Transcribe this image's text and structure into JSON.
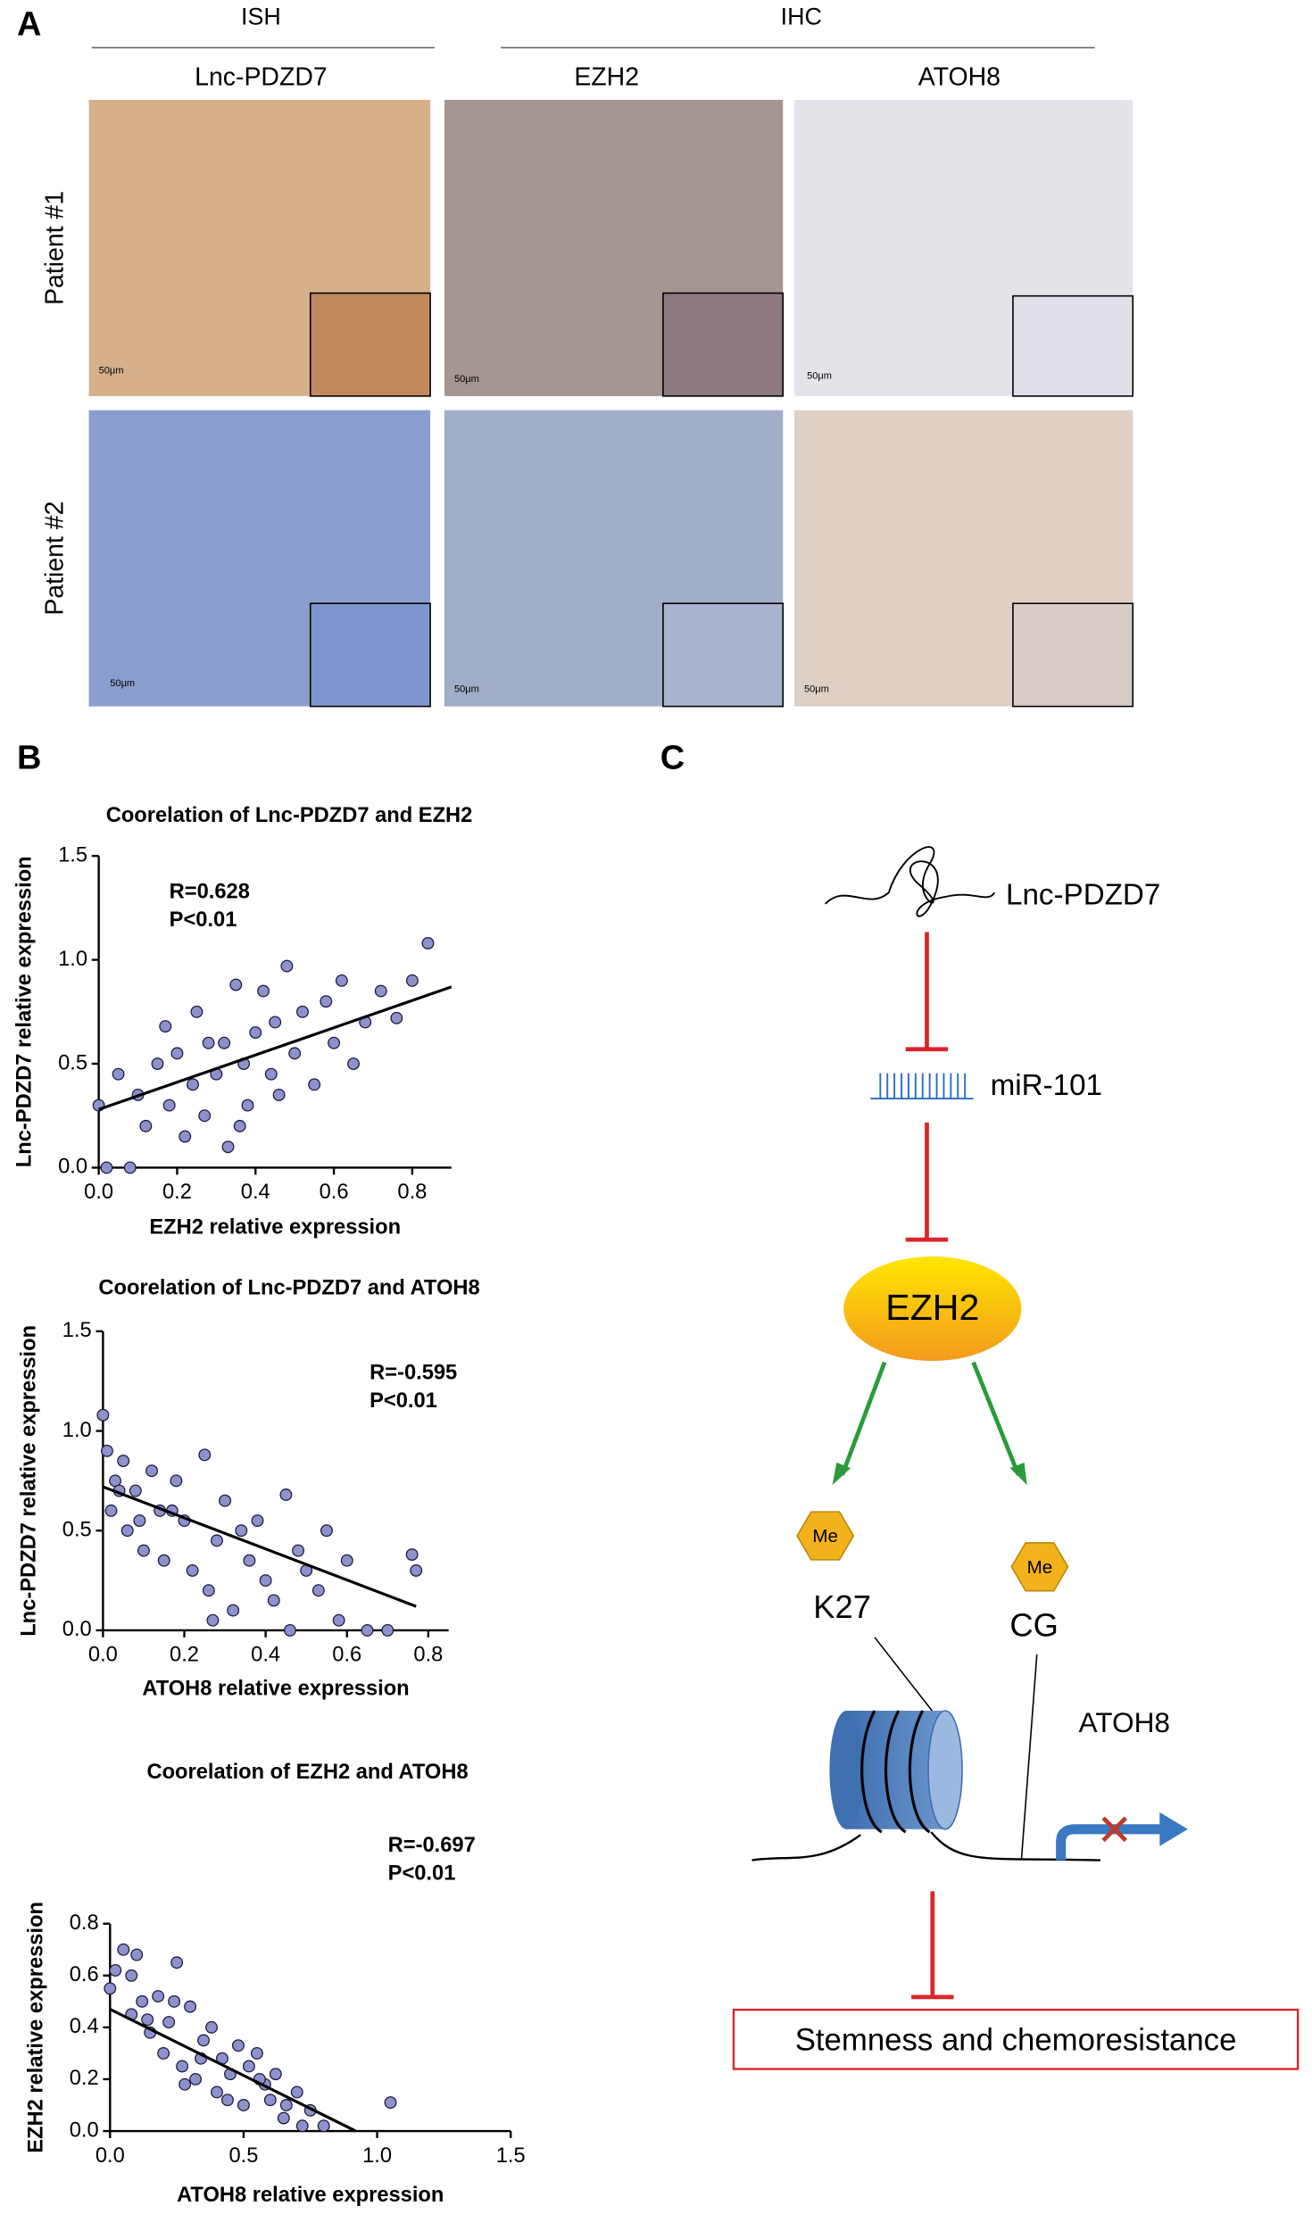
{
  "panel_labels": [
    "A",
    "B",
    "C"
  ],
  "panel_a": {
    "groups": [
      "ISH",
      "IHC"
    ],
    "columns": [
      "Lnc-PDZD7",
      "EZH2",
      "ATOH8"
    ],
    "rows": [
      "Patient #1",
      "Patient #2"
    ],
    "scale_bar": "50μm"
  },
  "chart_data": [
    {
      "type": "scatter",
      "title": "Coorelation of Lnc-PDZD7 and EZH2",
      "xlabel": "EZH2 relative expression",
      "ylabel": "Lnc-PDZD7 relative expression",
      "annotations": [
        "R=0.628",
        "P<0.01"
      ],
      "color": "#8e91cc",
      "x": [
        0.0,
        0.02,
        0.05,
        0.08,
        0.1,
        0.12,
        0.15,
        0.17,
        0.18,
        0.2,
        0.22,
        0.24,
        0.25,
        0.27,
        0.3,
        0.32,
        0.33,
        0.35,
        0.37,
        0.38,
        0.4,
        0.42,
        0.44,
        0.45,
        0.48,
        0.5,
        0.52,
        0.55,
        0.58,
        0.6,
        0.62,
        0.65,
        0.68,
        0.72,
        0.76,
        0.8,
        0.84,
        0.36,
        0.28,
        0.46
      ],
      "y": [
        0.3,
        0.0,
        0.45,
        0.0,
        0.35,
        0.2,
        0.5,
        0.68,
        0.3,
        0.55,
        0.15,
        0.4,
        0.75,
        0.25,
        0.45,
        0.6,
        0.1,
        0.88,
        0.5,
        0.3,
        0.65,
        0.85,
        0.45,
        0.7,
        0.97,
        0.55,
        0.75,
        0.4,
        0.8,
        0.6,
        0.9,
        0.5,
        0.7,
        0.85,
        0.72,
        0.9,
        1.08,
        0.2,
        0.6,
        0.35
      ],
      "trendline": {
        "x": [
          0,
          0.9
        ],
        "y": [
          0.28,
          0.87
        ]
      },
      "xlim": [
        0,
        0.9
      ],
      "ylim": [
        0,
        1.5
      ],
      "xticks": [
        {
          "value": 0,
          "label": "0.0"
        },
        0.2,
        0.4,
        0.6,
        0.8
      ],
      "yticks": [
        {
          "value": 0,
          "label": "0.0"
        },
        0.5,
        {
          "value": 1,
          "label": "1.0"
        },
        1.5
      ]
    },
    {
      "type": "scatter",
      "title": "Coorelation of Lnc-PDZD7 and ATOH8",
      "xlabel": "ATOH8 relative expression",
      "ylabel": "Lnc-PDZD7 relative expression",
      "annotations": [
        "R=-0.595",
        "P<0.01"
      ],
      "color": "#8e91cc",
      "x": [
        0.0,
        0.01,
        0.02,
        0.03,
        0.05,
        0.06,
        0.08,
        0.1,
        0.12,
        0.14,
        0.15,
        0.18,
        0.2,
        0.22,
        0.25,
        0.26,
        0.28,
        0.3,
        0.32,
        0.34,
        0.36,
        0.38,
        0.4,
        0.42,
        0.45,
        0.48,
        0.5,
        0.53,
        0.55,
        0.58,
        0.6,
        0.65,
        0.7,
        0.76,
        0.77,
        0.27,
        0.17,
        0.04,
        0.09,
        0.46
      ],
      "y": [
        1.08,
        0.9,
        0.6,
        0.75,
        0.85,
        0.5,
        0.7,
        0.4,
        0.8,
        0.6,
        0.35,
        0.75,
        0.55,
        0.3,
        0.88,
        0.2,
        0.45,
        0.65,
        0.1,
        0.5,
        0.35,
        0.55,
        0.25,
        0.15,
        0.68,
        0.4,
        0.3,
        0.2,
        0.5,
        0.05,
        0.35,
        0.0,
        0.0,
        0.38,
        0.3,
        0.05,
        0.6,
        0.7,
        0.55,
        0.0
      ],
      "trendline": {
        "x": [
          0,
          0.77
        ],
        "y": [
          0.72,
          0.12
        ]
      },
      "xlim": [
        0,
        0.85
      ],
      "ylim": [
        0,
        1.5
      ],
      "xticks": [
        {
          "value": 0,
          "label": "0.0"
        },
        0.2,
        0.4,
        0.6,
        0.8
      ],
      "yticks": [
        {
          "value": 0,
          "label": "0.0"
        },
        0.5,
        {
          "value": 1,
          "label": "1.0"
        },
        1.5
      ]
    },
    {
      "type": "scatter",
      "title": "Coorelation of EZH2 and ATOH8",
      "xlabel": "ATOH8 relative expression",
      "ylabel": "EZH2 relative expression",
      "annotations": [
        "R=-0.697",
        "P<0.01"
      ],
      "color": "#8e91cc",
      "x": [
        0.0,
        0.02,
        0.05,
        0.08,
        0.1,
        0.12,
        0.15,
        0.18,
        0.2,
        0.22,
        0.25,
        0.27,
        0.3,
        0.32,
        0.35,
        0.38,
        0.4,
        0.42,
        0.45,
        0.48,
        0.5,
        0.52,
        0.55,
        0.58,
        0.6,
        0.62,
        0.65,
        0.7,
        0.72,
        0.75,
        0.8,
        1.05,
        0.24,
        0.34,
        0.14,
        0.28,
        0.44,
        0.56,
        0.66,
        0.08
      ],
      "y": [
        0.55,
        0.62,
        0.7,
        0.45,
        0.68,
        0.5,
        0.38,
        0.52,
        0.3,
        0.42,
        0.65,
        0.25,
        0.48,
        0.2,
        0.35,
        0.4,
        0.15,
        0.28,
        0.22,
        0.33,
        0.1,
        0.25,
        0.3,
        0.18,
        0.12,
        0.22,
        0.05,
        0.15,
        0.02,
        0.08,
        0.02,
        0.11,
        0.5,
        0.28,
        0.43,
        0.18,
        0.12,
        0.2,
        0.1,
        0.6
      ],
      "trendline": {
        "x": [
          0,
          0.92
        ],
        "y": [
          0.47,
          0.0
        ]
      },
      "xlim": [
        0,
        1.5
      ],
      "ylim": [
        0,
        0.8
      ],
      "xticks": [
        {
          "value": 0,
          "label": "0.0"
        },
        0.5,
        {
          "value": 1,
          "label": "1.0"
        },
        1.5
      ],
      "yticks": [
        {
          "value": 0,
          "label": "0.0"
        },
        0.2,
        0.4,
        0.6,
        0.8
      ]
    }
  ],
  "panel_c": {
    "lnc": "Lnc-PDZD7",
    "mirna": "miR-101",
    "enzyme": "EZH2",
    "methyl": "Me",
    "histone": "K27",
    "cpg": "CG",
    "gene": "ATOH8",
    "outcome": "Stemness and chemoresistance"
  }
}
